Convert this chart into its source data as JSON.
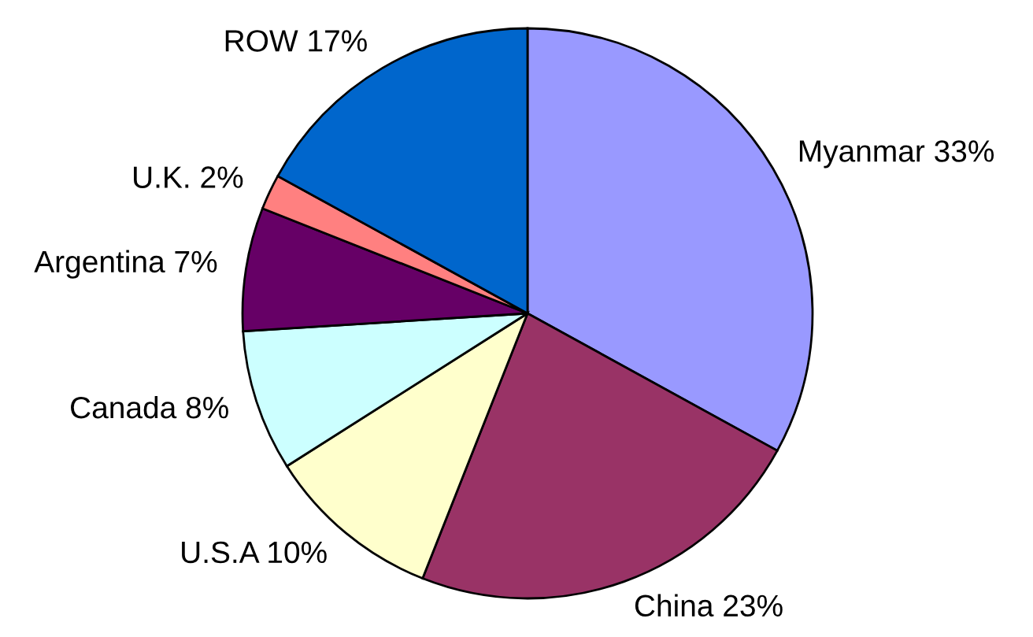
{
  "chart_data": {
    "type": "pie",
    "categories": [
      "Myanmar",
      "China",
      "U.S.A",
      "Canada",
      "Argentina",
      "U.K.",
      "ROW"
    ],
    "values": [
      33,
      23,
      10,
      8,
      7,
      2,
      17
    ],
    "value_labels": [
      "33%",
      "23%",
      "10%",
      "8%",
      "7%",
      "2%",
      "17%"
    ],
    "colors": [
      "#9999ff",
      "#993366",
      "#ffffcc",
      "#ccffff",
      "#660066",
      "#ff8080",
      "#0066cc"
    ]
  }
}
